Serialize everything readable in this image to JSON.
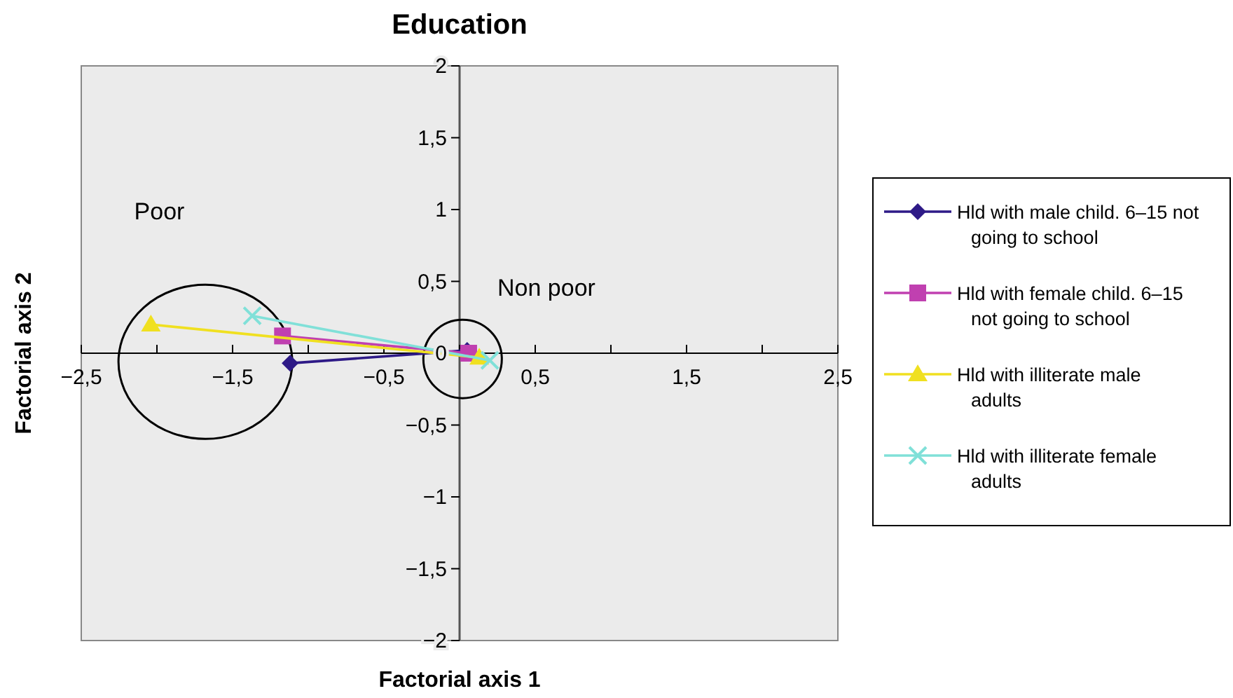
{
  "chart_data": {
    "type": "line",
    "title": "Education",
    "xlabel": "Factorial axis 1",
    "ylabel": "Factorial axis 2",
    "xlim": [
      -2.5,
      2.5
    ],
    "ylim": [
      -2,
      2
    ],
    "xticks": [
      {
        "value": -2.5,
        "label": "−2,5"
      },
      {
        "value": -2,
        "label": null
      },
      {
        "value": -1.5,
        "label": "−1,5"
      },
      {
        "value": -1,
        "label": null
      },
      {
        "value": -0.5,
        "label": "−0,5"
      },
      {
        "value": 0,
        "label": null
      },
      {
        "value": 0.5,
        "label": "0,5"
      },
      {
        "value": 1,
        "label": null
      },
      {
        "value": 1.5,
        "label": "1,5"
      },
      {
        "value": 2,
        "label": null
      },
      {
        "value": 2.5,
        "label": "2,5"
      }
    ],
    "yticks": [
      {
        "value": -2,
        "label": "−2"
      },
      {
        "value": -1.5,
        "label": "−1,5"
      },
      {
        "value": -1,
        "label": "−1"
      },
      {
        "value": -0.5,
        "label": "−0,5"
      },
      0,
      {
        "value": 0.5,
        "label": "0,5"
      },
      1,
      {
        "value": 1.5,
        "label": "1,5"
      },
      2
    ],
    "grid": false,
    "legend": "right",
    "line_style": "solid",
    "annotations": [
      "Poor",
      "Non poor"
    ],
    "series": [
      {
        "name": "Hld with male child. 6–15 not going to school",
        "color": "#2e1a87",
        "marker": "diamond",
        "x": [
          -1.12,
          0.05
        ],
        "values": [
          -0.07,
          0.02
        ]
      },
      {
        "name": "Hld with female child. 6–15 not going to school",
        "color": "#c040b0",
        "marker": "square",
        "x": [
          -1.17,
          0.06
        ],
        "values": [
          0.12,
          0.0
        ]
      },
      {
        "name": "Hld with illiterate male adults",
        "color": "#f0e020",
        "marker": "triangle",
        "x": [
          -2.04,
          0.13
        ],
        "values": [
          0.2,
          -0.03
        ]
      },
      {
        "name": "Hld with illiterate female adults",
        "color": "#80e0d8",
        "marker": "cross",
        "x": [
          -1.37,
          0.2
        ],
        "values": [
          0.26,
          -0.05
        ]
      }
    ]
  }
}
